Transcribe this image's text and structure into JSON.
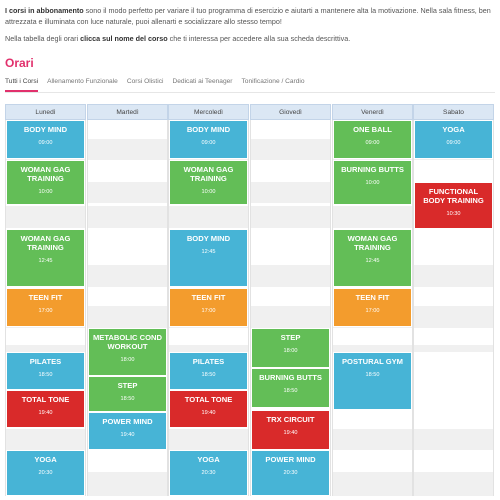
{
  "intro": {
    "p1_bold": "I corsi in abbonamento",
    "p1_rest": " sono il modo perfetto per variare il tuo programma di esercizio e aiutarti a mantenere alta la motivazione. Nella sala fitness, ben attrezzata e illuminata con luce naturale, puoi allenarti e socializzare allo stesso tempo!",
    "p2_start": "Nella tabella degli orari ",
    "p2_bold": "clicca sul nome del corso",
    "p2_end": " che ti interessa per accedere alla sua scheda descrittiva."
  },
  "heading": "Orari",
  "tabs": [
    {
      "label": "Tutti i Corsi",
      "active": true
    },
    {
      "label": "Allenamento Funzionale",
      "active": false
    },
    {
      "label": "Corsi Olistici",
      "active": false
    },
    {
      "label": "Dedicati ai Teenager",
      "active": false
    },
    {
      "label": "Tonificazione / Cardio",
      "active": false
    }
  ],
  "days": [
    "Lunedì",
    "Martedì",
    "Mercoledì",
    "Giovedì",
    "Venerdì",
    "Sabato"
  ],
  "colors": {
    "blue": "#47b4d6",
    "green": "#63be57",
    "orange": "#f39c2d",
    "red": "#d92a2a",
    "accent": "#e1306c"
  },
  "classes": [
    {
      "day": 0,
      "name": "BODY MIND",
      "time": "09:00",
      "color": "blue"
    },
    {
      "day": 0,
      "name": "WOMAN GAG TRAINING",
      "time": "10:00",
      "color": "green"
    },
    {
      "day": 0,
      "name": "WOMAN GAG TRAINING",
      "time": "12:45",
      "color": "green"
    },
    {
      "day": 0,
      "name": "TEEN FIT",
      "time": "17:00",
      "color": "orange"
    },
    {
      "day": 0,
      "name": "PILATES",
      "time": "18:50",
      "color": "blue"
    },
    {
      "day": 0,
      "name": "TOTAL TONE",
      "time": "19:40",
      "color": "red"
    },
    {
      "day": 0,
      "name": "YOGA",
      "time": "20:30",
      "color": "blue"
    },
    {
      "day": 1,
      "name": "METABOLIC COND WORKOUT",
      "time": "18:00",
      "color": "green"
    },
    {
      "day": 1,
      "name": "STEP",
      "time": "18:50",
      "color": "green"
    },
    {
      "day": 1,
      "name": "POWER MIND",
      "time": "19:40",
      "color": "blue"
    },
    {
      "day": 2,
      "name": "BODY MIND",
      "time": "09:00",
      "color": "blue"
    },
    {
      "day": 2,
      "name": "WOMAN GAG TRAINING",
      "time": "10:00",
      "color": "green"
    },
    {
      "day": 2,
      "name": "BODY MIND",
      "time": "12:45",
      "color": "blue"
    },
    {
      "day": 2,
      "name": "TEEN FIT",
      "time": "17:00",
      "color": "orange"
    },
    {
      "day": 2,
      "name": "PILATES",
      "time": "18:50",
      "color": "blue"
    },
    {
      "day": 2,
      "name": "TOTAL TONE",
      "time": "19:40",
      "color": "red"
    },
    {
      "day": 2,
      "name": "YOGA",
      "time": "20:30",
      "color": "blue"
    },
    {
      "day": 3,
      "name": "STEP",
      "time": "18:00",
      "color": "green"
    },
    {
      "day": 3,
      "name": "BURNING BUTTS",
      "time": "18:50",
      "color": "green"
    },
    {
      "day": 3,
      "name": "TRX CIRCUIT",
      "time": "19:40",
      "color": "red"
    },
    {
      "day": 3,
      "name": "POWER MIND",
      "time": "20:30",
      "color": "blue"
    },
    {
      "day": 4,
      "name": "ONE BALL",
      "time": "09:00",
      "color": "green"
    },
    {
      "day": 4,
      "name": "BURNING BUTTS",
      "time": "10:00",
      "color": "green"
    },
    {
      "day": 4,
      "name": "WOMAN GAG TRAINING",
      "time": "12:45",
      "color": "green"
    },
    {
      "day": 4,
      "name": "TEEN FIT",
      "time": "17:00",
      "color": "orange"
    },
    {
      "day": 4,
      "name": "POSTURAL GYM",
      "time": "18:50",
      "color": "blue"
    },
    {
      "day": 5,
      "name": "YOGA",
      "time": "09:00",
      "color": "blue"
    },
    {
      "day": 5,
      "name": "FUNCTIONAL BODY TRAINING",
      "time": "10:30",
      "color": "red"
    }
  ]
}
